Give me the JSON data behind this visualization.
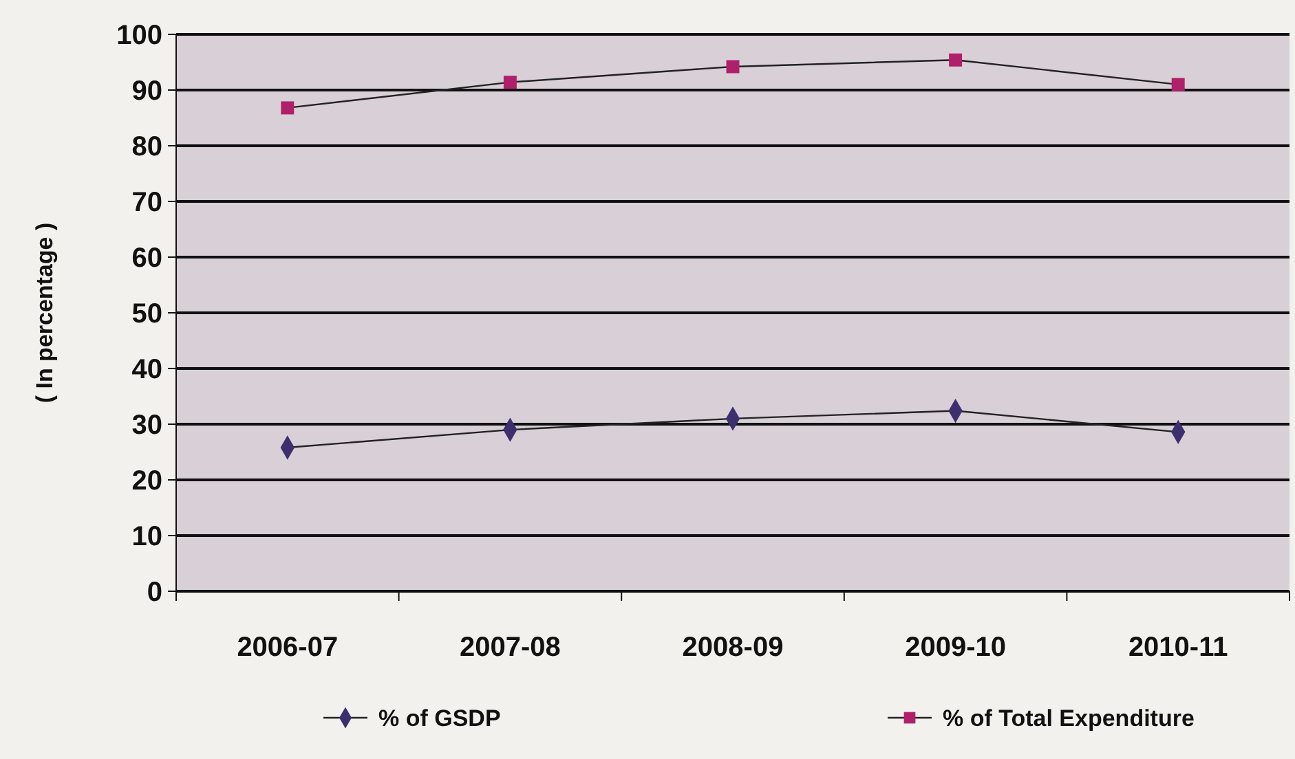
{
  "chart_data": {
    "type": "line",
    "ylabel": "( In percentage )",
    "categories": [
      "2006-07",
      "2007-08",
      "2008-09",
      "2009-10",
      "2010-11"
    ],
    "series": [
      {
        "name": "% of GSDP",
        "color": "#3d2f6e",
        "marker": "diamond",
        "values": [
          25.8,
          29,
          31,
          32.4,
          28.6
        ]
      },
      {
        "name": "% of Total Expenditure",
        "color": "#b0206a",
        "marker": "square",
        "values": [
          86.8,
          91.4,
          94.2,
          95.4,
          91
        ]
      }
    ],
    "ylim": [
      0,
      100
    ],
    "yticks": [
      0,
      10,
      20,
      30,
      40,
      50,
      60,
      70,
      80,
      90,
      100
    ],
    "grid": "y",
    "legend": "bottom"
  }
}
